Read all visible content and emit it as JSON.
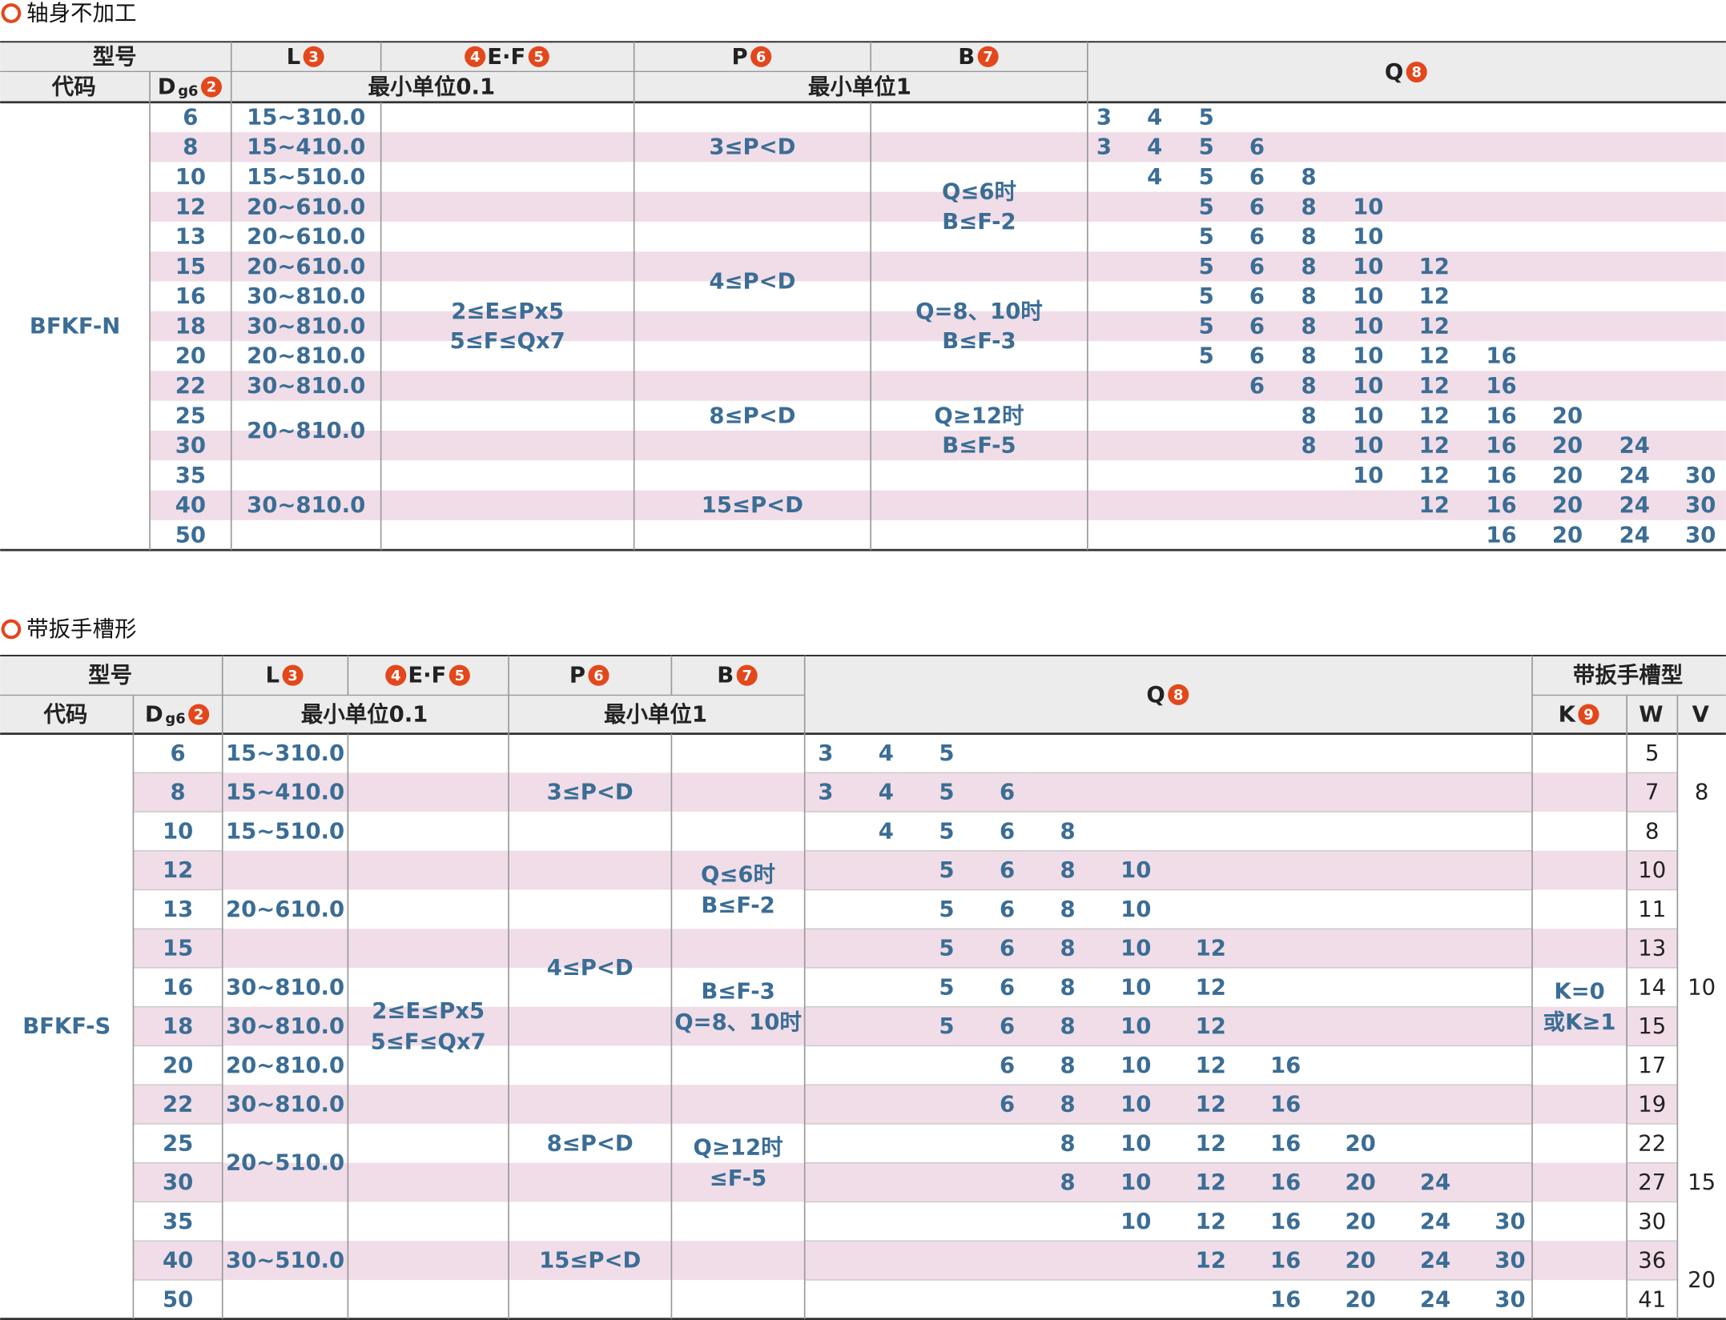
{
  "sections": [
    {
      "title": "轴身不加工",
      "header": {
        "model": "型号",
        "code": "代码",
        "d": {
          "label": "D",
          "sub": "g6",
          "badge": "2"
        },
        "l": {
          "label": "L",
          "badge": "3"
        },
        "ef": {
          "badge1": "4",
          "label": "E·F",
          "badge2": "5"
        },
        "p": {
          "label": "P",
          "badge": "6"
        },
        "b": {
          "label": "B",
          "badge": "7"
        },
        "q": {
          "label": "Q",
          "badge": "8"
        },
        "unit01": "最小单位0.1",
        "unit1": "最小单位1"
      },
      "code": "BFKF-N",
      "d": [
        6,
        8,
        10,
        12,
        13,
        15,
        16,
        18,
        20,
        22,
        25,
        30,
        35,
        40,
        50
      ],
      "l": [
        {
          "rows": [
            0,
            0
          ],
          "text": [
            "15~310.0"
          ]
        },
        {
          "rows": [
            1,
            1
          ],
          "text": [
            "15~410.0"
          ]
        },
        {
          "rows": [
            2,
            2
          ],
          "text": [
            "15~510.0"
          ]
        },
        {
          "rows": [
            3,
            3
          ],
          "text": [
            "20~610.0"
          ]
        },
        {
          "rows": [
            4,
            4
          ],
          "text": [
            "20~610.0"
          ]
        },
        {
          "rows": [
            5,
            5
          ],
          "text": [
            "20~610.0"
          ]
        },
        {
          "rows": [
            6,
            6
          ],
          "text": [
            "30~810.0"
          ]
        },
        {
          "rows": [
            7,
            7
          ],
          "text": [
            "30~810.0"
          ]
        },
        {
          "rows": [
            8,
            8
          ],
          "text": [
            "20~810.0"
          ]
        },
        {
          "rows": [
            9,
            9
          ],
          "text": [
            "30~810.0"
          ]
        },
        {
          "rows": [
            10,
            11
          ],
          "text": [
            "20~810.0"
          ]
        },
        {
          "rows": [
            12,
            14
          ],
          "text": [
            "30~810.0"
          ]
        }
      ],
      "ef": [
        {
          "rows": [
            0,
            14
          ],
          "text": [
            "2≤E≤Px5",
            "5≤F≤Qx7"
          ]
        }
      ],
      "p": [
        {
          "rows": [
            0,
            2
          ],
          "text": [
            "3≤P<D"
          ]
        },
        {
          "rows": [
            3,
            8
          ],
          "text": [
            "4≤P<D"
          ]
        },
        {
          "rows": [
            9,
            11
          ],
          "text": [
            "8≤P<D"
          ]
        },
        {
          "rows": [
            12,
            14
          ],
          "text": [
            "15≤P<D"
          ]
        }
      ],
      "b": [
        {
          "rows": [
            2,
            4
          ],
          "text": [
            "Q≤6时",
            "B≤F-2"
          ]
        },
        {
          "rows": [
            6,
            8
          ],
          "text": [
            "Q=8、10时",
            "B≤F-3"
          ]
        },
        {
          "rows": [
            10,
            11
          ],
          "text": [
            "Q≥12时",
            "B≤F-5"
          ]
        }
      ],
      "q": [
        [
          3,
          4,
          5
        ],
        [
          3,
          4,
          5,
          6
        ],
        [
          4,
          5,
          6,
          8
        ],
        [
          5,
          6,
          8,
          10
        ],
        [
          5,
          6,
          8,
          10
        ],
        [
          5,
          6,
          8,
          10,
          12
        ],
        [
          5,
          6,
          8,
          10,
          12
        ],
        [
          5,
          6,
          8,
          10,
          12
        ],
        [
          5,
          6,
          8,
          10,
          12,
          16
        ],
        [
          6,
          8,
          10,
          12,
          16
        ],
        [
          8,
          10,
          12,
          16,
          20
        ],
        [
          8,
          10,
          12,
          16,
          20,
          24
        ],
        [
          10,
          12,
          16,
          20,
          24,
          30
        ],
        [
          12,
          16,
          20,
          24,
          30
        ],
        [
          16,
          20,
          24,
          30
        ]
      ]
    },
    {
      "title": "带扳手槽形",
      "header": {
        "model": "型号",
        "code": "代码",
        "d": {
          "label": "D",
          "sub": "g6",
          "badge": "2"
        },
        "l": {
          "label": "L",
          "badge": "3"
        },
        "ef": {
          "badge1": "4",
          "label": "E·F",
          "badge2": "5"
        },
        "p": {
          "label": "P",
          "badge": "6"
        },
        "b": {
          "label": "B",
          "badge": "7"
        },
        "q": {
          "label": "Q",
          "badge": "8"
        },
        "unit01": "最小单位0.1",
        "unit1": "最小单位1",
        "wrench": "带扳手槽型",
        "k": {
          "label": "K",
          "badge": "9"
        },
        "w": "W",
        "v": "V"
      },
      "code": "BFKF-S",
      "d": [
        6,
        8,
        10,
        12,
        13,
        15,
        16,
        18,
        20,
        22,
        25,
        30,
        35,
        40,
        50
      ],
      "l": [
        {
          "rows": [
            0,
            0
          ],
          "text": [
            "15~310.0"
          ]
        },
        {
          "rows": [
            1,
            1
          ],
          "text": [
            "15~410.0"
          ]
        },
        {
          "rows": [
            2,
            2
          ],
          "text": [
            "15~510.0"
          ]
        },
        {
          "rows": [
            3,
            5
          ],
          "text": [
            "20~610.0"
          ]
        },
        {
          "rows": [
            6,
            6
          ],
          "text": [
            "30~810.0"
          ]
        },
        {
          "rows": [
            7,
            7
          ],
          "text": [
            "30~810.0"
          ]
        },
        {
          "rows": [
            8,
            8
          ],
          "text": [
            "20~810.0"
          ]
        },
        {
          "rows": [
            9,
            9
          ],
          "text": [
            "30~810.0"
          ]
        },
        {
          "rows": [
            10,
            11
          ],
          "text": [
            "20~510.0"
          ]
        },
        {
          "rows": [
            12,
            14
          ],
          "text": [
            "30~510.0"
          ]
        }
      ],
      "ef": [
        {
          "rows": [
            0,
            14
          ],
          "text": [
            "2≤E≤Px5",
            "5≤F≤Qx7"
          ]
        }
      ],
      "p": [
        {
          "rows": [
            0,
            2
          ],
          "text": [
            "3≤P<D"
          ]
        },
        {
          "rows": [
            3,
            8
          ],
          "text": [
            "4≤P<D"
          ]
        },
        {
          "rows": [
            9,
            11
          ],
          "text": [
            "8≤P<D"
          ]
        },
        {
          "rows": [
            12,
            14
          ],
          "text": [
            "15≤P<D"
          ]
        }
      ],
      "b": [
        {
          "rows": [
            2,
            5
          ],
          "text": [
            "Q≤6时",
            "B≤F-2"
          ]
        },
        {
          "rows": [
            6,
            7
          ],
          "text": [
            "B≤F-3",
            "Q=8、10时"
          ]
        },
        {
          "rows": [
            10,
            11
          ],
          "text": [
            "Q≥12时",
            "≤F-5"
          ]
        }
      ],
      "q": [
        [
          3,
          4,
          5
        ],
        [
          3,
          4,
          5,
          6
        ],
        [
          4,
          5,
          6,
          8
        ],
        [
          5,
          6,
          8,
          10
        ],
        [
          5,
          6,
          8,
          10
        ],
        [
          5,
          6,
          8,
          10,
          12
        ],
        [
          5,
          6,
          8,
          10,
          12
        ],
        [
          5,
          6,
          8,
          10,
          12
        ],
        [
          6,
          8,
          10,
          12,
          16
        ],
        [
          6,
          8,
          10,
          12,
          16
        ],
        [
          8,
          10,
          12,
          16,
          20
        ],
        [
          8,
          10,
          12,
          16,
          20,
          24
        ],
        [
          10,
          12,
          16,
          20,
          24,
          30
        ],
        [
          12,
          16,
          20,
          24,
          30
        ],
        [
          16,
          20,
          24,
          30
        ]
      ],
      "k": [
        {
          "rows": [
            6,
            7
          ],
          "text": [
            "K=0",
            "或K≥1"
          ]
        }
      ],
      "w": [
        5,
        7,
        8,
        10,
        11,
        13,
        14,
        15,
        17,
        19,
        22,
        27,
        30,
        36,
        41
      ],
      "v": [
        {
          "rows": [
            0,
            2
          ],
          "text": [
            "8"
          ]
        },
        {
          "rows": [
            3,
            9
          ],
          "text": [
            "10"
          ]
        },
        {
          "rows": [
            10,
            12
          ],
          "text": [
            "15"
          ]
        },
        {
          "rows": [
            13,
            14
          ],
          "text": [
            "20"
          ]
        }
      ]
    }
  ]
}
